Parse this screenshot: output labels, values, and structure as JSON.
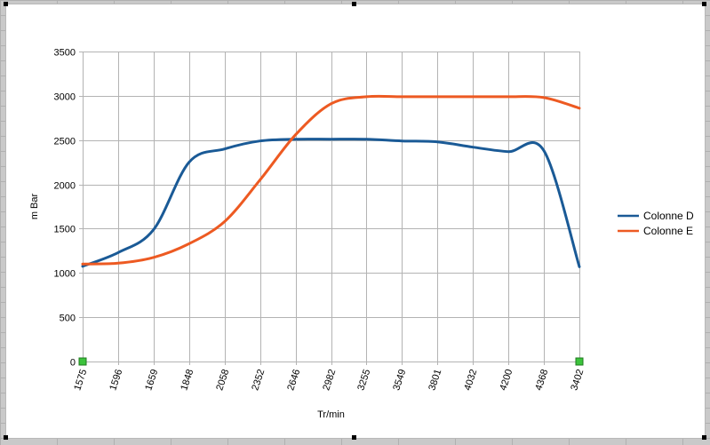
{
  "chart_data": {
    "type": "line",
    "title": "",
    "xlabel": "Tr/min",
    "ylabel": "m Bar",
    "ylim": [
      0,
      3500
    ],
    "yticks": [
      0,
      500,
      1000,
      1500,
      2000,
      2500,
      3000,
      3500
    ],
    "grid": true,
    "legend_position": "right",
    "categories": [
      "1575",
      "1596",
      "1659",
      "1848",
      "2058",
      "2352",
      "2646",
      "2982",
      "3255",
      "3549",
      "3801",
      "4032",
      "4200",
      "4368",
      "3402"
    ],
    "series": [
      {
        "name": "Colonne D",
        "color": "#1a5a96",
        "values": [
          1075,
          1230,
          1490,
          2250,
          2400,
          2490,
          2510,
          2510,
          2510,
          2490,
          2480,
          2420,
          2370,
          2380,
          1070
        ]
      },
      {
        "name": "Colonne E",
        "color": "#ed5a22",
        "values": [
          1100,
          1110,
          1175,
          1330,
          1580,
          2050,
          2560,
          2910,
          2990,
          2990,
          2990,
          2990,
          2990,
          2980,
          2860
        ]
      }
    ]
  }
}
